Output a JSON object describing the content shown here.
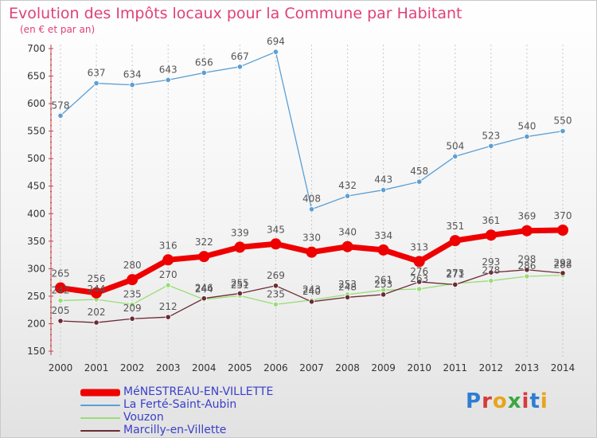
{
  "title": "Evolution des Impôts locaux pour la Commune par Habitant",
  "subtitle": "(en € et par an)",
  "logo": {
    "letters": [
      "P",
      "r",
      "o",
      "x",
      "i",
      "t",
      "i"
    ],
    "colors": [
      "#2f7dd1",
      "#d63a3a",
      "#e7a51c",
      "#3aa744",
      "#d63a3a",
      "#2f7dd1",
      "#e7a51c"
    ]
  },
  "chart_data": {
    "type": "line",
    "title": "Evolution des Impôts locaux pour la Commune par Habitant",
    "ylabel": "(en € et par an)",
    "xlabel": "",
    "x": [
      "2000",
      "2001",
      "2002",
      "2003",
      "2004",
      "2005",
      "2006",
      "2007",
      "2008",
      "2009",
      "2010",
      "2011",
      "2012",
      "2013",
      "2014"
    ],
    "ylim": [
      150,
      700
    ],
    "yticks": [
      150,
      200,
      250,
      300,
      350,
      400,
      450,
      500,
      550,
      600,
      650,
      700
    ],
    "series": [
      {
        "name": "MéNESTREAU-EN-VILLETTE",
        "color": "#ee0000",
        "values": [
          265,
          256,
          280,
          316,
          322,
          339,
          345,
          330,
          340,
          334,
          313,
          351,
          361,
          369,
          370
        ]
      },
      {
        "name": "La Ferté-Saint-Aubin",
        "color": "#5b9fd4",
        "values": [
          578,
          637,
          634,
          643,
          656,
          667,
          694,
          408,
          432,
          443,
          458,
          504,
          523,
          540,
          550
        ]
      },
      {
        "name": "Vouzon",
        "color": "#99dd77",
        "values": [
          242,
          244,
          235,
          270,
          244,
          251,
          235,
          243,
          253,
          261,
          263,
          273,
          278,
          286,
          288
        ]
      },
      {
        "name": "Marcilly-en-Villette",
        "color": "#6b2a35",
        "values": [
          205,
          202,
          209,
          212,
          246,
          255,
          269,
          240,
          248,
          253,
          276,
          271,
          293,
          298,
          292
        ]
      }
    ]
  }
}
